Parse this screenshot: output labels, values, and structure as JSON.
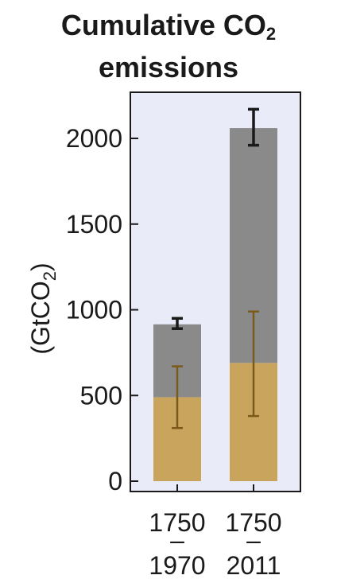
{
  "chart_data": {
    "type": "bar",
    "stacked": true,
    "title": "Cumulative CO2 emissions",
    "title_line1": "Cumulative CO",
    "title_sub": "2",
    "title_line2": "emissions",
    "ylabel": "(GtCO2)",
    "ylabel_main": "(GtCO",
    "ylabel_sub": "2",
    "ylabel_close": ")",
    "xlabel": "",
    "ylim": [
      0,
      2200
    ],
    "yticks": [
      0,
      500,
      1000,
      1500,
      2000
    ],
    "categories": [
      {
        "top": "1750",
        "mid": "–",
        "bottom": "1970"
      },
      {
        "top": "1750",
        "mid": "–",
        "bottom": "2011"
      }
    ],
    "series": [
      {
        "component": "lower",
        "values": [
          490,
          690
        ],
        "error_low": [
          310,
          380
        ],
        "error_high": [
          670,
          990
        ],
        "color": "#c9a45c",
        "error_color": "#7a5a1a"
      },
      {
        "component": "upper",
        "values": [
          425,
          1370
        ],
        "totals": [
          915,
          2060
        ],
        "error_low": [
          890,
          1960
        ],
        "error_high": [
          950,
          2170
        ],
        "color": "#8a8a8a",
        "error_color": "#1a1a1a"
      }
    ],
    "plot_background": "#e9ebf8",
    "grid": false,
    "legend": "none"
  }
}
